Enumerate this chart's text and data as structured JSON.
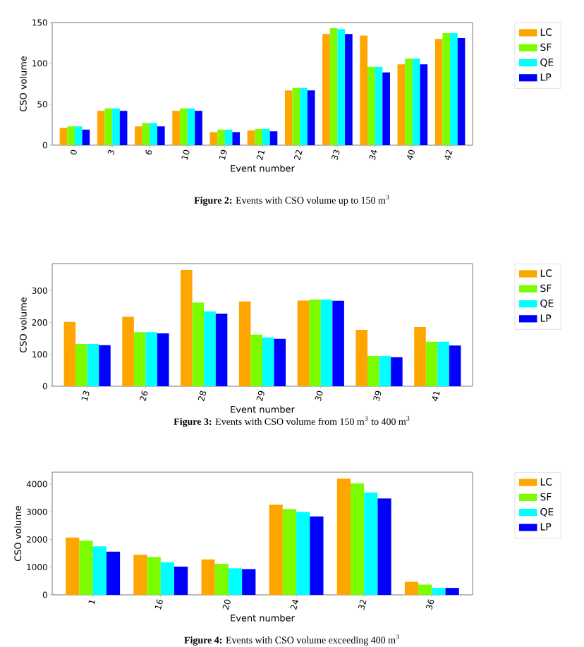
{
  "chart_data": [
    {
      "type": "bar",
      "xlabel": "Event number",
      "ylabel": "CSO volume",
      "categories": [
        "0",
        "3",
        "6",
        "10",
        "19",
        "21",
        "22",
        "33",
        "34",
        "40",
        "42"
      ],
      "series": [
        {
          "name": "LC",
          "color": "#ffa500",
          "values": [
            21,
            42,
            23,
            42,
            16,
            18,
            67,
            136,
            134,
            99,
            130
          ]
        },
        {
          "name": "SF",
          "color": "#7cfc00",
          "values": [
            23,
            45,
            27,
            45,
            19,
            20,
            70,
            143,
            96,
            106,
            137
          ]
        },
        {
          "name": "QE",
          "color": "#00ffff",
          "values": [
            23,
            45,
            27,
            45,
            19,
            20,
            70,
            142,
            96,
            106,
            137
          ]
        },
        {
          "name": "LP",
          "color": "#0000ff",
          "values": [
            19,
            42,
            23,
            42,
            16,
            17,
            67,
            136,
            89,
            99,
            131
          ]
        }
      ],
      "ylim": [
        0,
        150
      ],
      "yticks": [
        0,
        50,
        100,
        150
      ],
      "legend": "right",
      "annotations": [
        "**Figure 2:** Events with CSO volume up to 150 m$^{3}$"
      ]
    },
    {
      "type": "bar",
      "xlabel": "Event number",
      "ylabel": "CSO volume",
      "categories": [
        "13",
        "26",
        "28",
        "29",
        "30",
        "39",
        "41"
      ],
      "series": [
        {
          "name": "LC",
          "color": "#ffa500",
          "values": [
            202,
            218,
            365,
            266,
            269,
            177,
            186
          ]
        },
        {
          "name": "SF",
          "color": "#7cfc00",
          "values": [
            133,
            170,
            263,
            162,
            272,
            95,
            140
          ]
        },
        {
          "name": "QE",
          "color": "#00ffff",
          "values": [
            133,
            170,
            235,
            153,
            272,
            95,
            140
          ]
        },
        {
          "name": "LP",
          "color": "#0000ff",
          "values": [
            129,
            166,
            228,
            149,
            268,
            91,
            128
          ]
        }
      ],
      "ylim": [
        0,
        385
      ],
      "yticks": [
        0,
        100,
        200,
        300
      ],
      "legend": "right",
      "annotations": [
        "**Figure 3:** Events with CSO volume from 150 m$^{3}$ to 400 m$^{3}$"
      ]
    },
    {
      "type": "bar",
      "xlabel": "Event number",
      "ylabel": "CSO volume",
      "categories": [
        "1",
        "16",
        "20",
        "24",
        "32",
        "36"
      ],
      "series": [
        {
          "name": "LC",
          "color": "#ffa500",
          "values": [
            2070,
            1450,
            1280,
            3260,
            4200,
            470
          ]
        },
        {
          "name": "SF",
          "color": "#7cfc00",
          "values": [
            1960,
            1370,
            1120,
            3100,
            4030,
            370
          ]
        },
        {
          "name": "QE",
          "color": "#00ffff",
          "values": [
            1750,
            1180,
            960,
            3000,
            3700,
            250
          ]
        },
        {
          "name": "LP",
          "color": "#0000ff",
          "values": [
            1560,
            1020,
            930,
            2830,
            3480,
            250
          ]
        }
      ],
      "ylim": [
        0,
        4430
      ],
      "yticks": [
        0,
        1000,
        2000,
        3000,
        4000
      ],
      "legend": "right",
      "annotations": [
        "**Figure 4:** Events with CSO volume exceeding 400 m$^{3}$"
      ]
    }
  ]
}
